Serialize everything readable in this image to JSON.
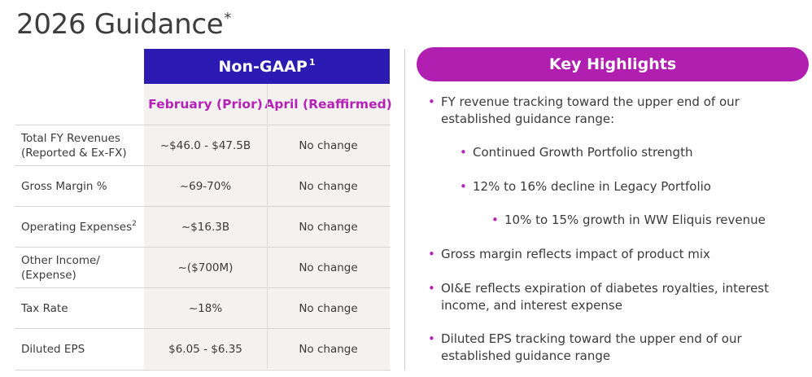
{
  "page": {
    "title": "2026 Guidance",
    "title_mark": "*"
  },
  "table": {
    "group_header": "Non-GAAP",
    "group_header_mark": "1",
    "columns": [
      "February (Prior)",
      "April (Reaffirmed)"
    ],
    "rows": [
      {
        "label": "Total FY Revenues\n(Reported & Ex-FX)",
        "mark": "",
        "prior": "~$46.0 - $47.5B",
        "reaffirmed": "No change"
      },
      {
        "label": "Gross Margin %",
        "mark": "",
        "prior": "~69-70%",
        "reaffirmed": "No change"
      },
      {
        "label": "Operating Expenses",
        "mark": "2",
        "prior": "~$16.3B",
        "reaffirmed": "No change"
      },
      {
        "label": "Other Income/\n(Expense)",
        "mark": "",
        "prior": "~($700M)",
        "reaffirmed": "No change"
      },
      {
        "label": "Tax Rate",
        "mark": "",
        "prior": "~18%",
        "reaffirmed": "No change"
      },
      {
        "label": "Diluted EPS",
        "mark": "",
        "prior": "$6.05 - $6.35",
        "reaffirmed": "No change"
      }
    ]
  },
  "highlights": {
    "title": "Key Highlights",
    "items": [
      {
        "level": 0,
        "text": "FY revenue tracking toward the upper end of our established guidance range:"
      },
      {
        "level": 1,
        "text": "Continued Growth Portfolio strength"
      },
      {
        "level": 1,
        "text": "12% to 16% decline in Legacy Portfolio"
      },
      {
        "level": 2,
        "text": "10% to 15% growth in WW Eliquis revenue"
      },
      {
        "level": 0,
        "text": "Gross margin reflects impact of product mix"
      },
      {
        "level": 0,
        "text": "OI&E reflects expiration of diabetes royalties, interest income, and interest expense"
      },
      {
        "level": 0,
        "text": "Diluted EPS tracking toward the upper end of our established guidance range"
      }
    ]
  },
  "colors": {
    "header_blue": "#2b1bb3",
    "accent_magenta": "#b11fb1"
  }
}
